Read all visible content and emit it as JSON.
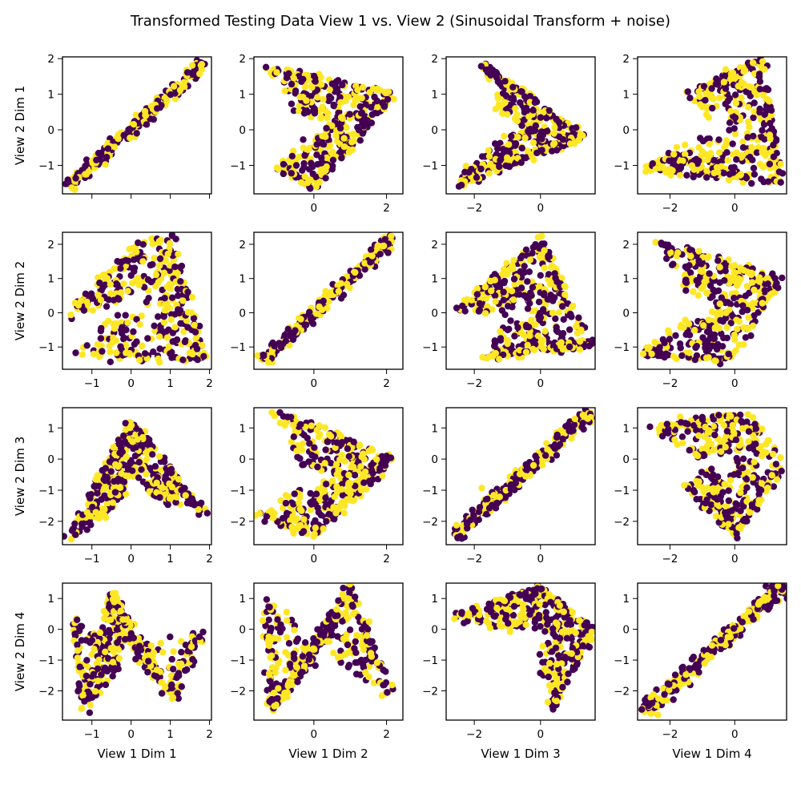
{
  "chart_data": {
    "type": "scatter",
    "layout": "4x4 grid of scatter panels",
    "title": "Transformed Testing Data View 1 vs. View 2 (Sinusoidal Transform + noise)",
    "colors": {
      "class_0": "#440154",
      "class_1": "#fde725"
    },
    "grid": false,
    "row_labels": [
      "View 2 Dim 1",
      "View 2 Dim 2",
      "View 2 Dim 3",
      "View 2 Dim 4"
    ],
    "col_labels": [
      "View 1 Dim 1",
      "View 1 Dim 2",
      "View 1 Dim 3",
      "View 1 Dim 4"
    ],
    "col_ranges": [
      [
        -1.75,
        2.05
      ],
      [
        -1.65,
        2.45
      ],
      [
        -2.85,
        1.65
      ],
      [
        -3.0,
        1.6
      ]
    ],
    "row_ranges": [
      [
        -1.8,
        2.05
      ],
      [
        -1.65,
        2.35
      ],
      [
        -2.75,
        1.65
      ],
      [
        -2.95,
        1.5
      ]
    ],
    "col_ticks": [
      [
        -1,
        0,
        1,
        2
      ],
      [
        0,
        2
      ],
      [
        -2,
        0
      ],
      [
        -2,
        0
      ]
    ],
    "row_ticks": [
      [
        -1,
        0,
        1,
        2
      ],
      [
        -1,
        0,
        1,
        2
      ],
      [
        -2,
        -1,
        0,
        1
      ],
      [
        -2,
        -1,
        0,
        1
      ]
    ],
    "tick_labels": {
      "col": [
        [
          "−1",
          "0",
          "1",
          "2"
        ],
        [
          "0",
          "2"
        ],
        [
          "−2",
          "0"
        ],
        [
          "−2",
          "0"
        ]
      ],
      "row": [
        [
          "−1",
          "0",
          "1",
          "2"
        ],
        [
          "−1",
          "0",
          "1",
          "2"
        ],
        [
          "−2",
          "−1",
          "0",
          "1"
        ],
        [
          "−2",
          "−1",
          "0",
          "1"
        ]
      ]
    },
    "x_tick_labels_shown": [
      [
        1,
        2,
        3
      ],
      [
        0,
        1,
        2,
        3
      ],
      [
        0,
        1,
        2,
        3
      ],
      [
        0,
        1,
        2,
        3
      ]
    ],
    "panels": [
      [
        {
          "pattern": "diagonal",
          "anchors": [
            [
              -1.6,
              -1.6
            ],
            [
              1.9,
              1.9
            ]
          ],
          "spread": 0.06
        },
        {
          "pattern": "triangle",
          "anchors": [
            [
              -1.3,
              1.8
            ],
            [
              2.2,
              1.0
            ],
            [
              0.0,
              -1.6
            ],
            [
              -1.0,
              -1.1
            ]
          ]
        },
        {
          "pattern": "chevron",
          "anchors": [
            [
              -1.8,
              1.9
            ],
            [
              1.3,
              -0.2
            ],
            [
              -2.6,
              -1.6
            ]
          ]
        },
        {
          "pattern": "sigma",
          "anchors": [
            [
              -1.5,
              1.0
            ],
            [
              0.8,
              2.0
            ],
            [
              1.4,
              -1.5
            ],
            [
              -2.9,
              -1.1
            ]
          ]
        }
      ],
      [
        {
          "pattern": "arch",
          "anchors": [
            [
              -1.6,
              0.0
            ],
            [
              0.3,
              2.1
            ],
            [
              1.0,
              2.2
            ],
            [
              1.9,
              -1.4
            ],
            [
              -1.5,
              -1.2
            ]
          ]
        },
        {
          "pattern": "diagonal",
          "anchors": [
            [
              -1.4,
              -1.4
            ],
            [
              2.2,
              2.2
            ]
          ],
          "spread": 0.06
        },
        {
          "pattern": "flag",
          "anchors": [
            [
              -2.6,
              0.0
            ],
            [
              0.0,
              2.2
            ],
            [
              1.5,
              -1.0
            ],
            [
              -1.8,
              -1.3
            ]
          ]
        },
        {
          "pattern": "sigma",
          "anchors": [
            [
              -2.5,
              2.1
            ],
            [
              1.4,
              1.0
            ],
            [
              -0.2,
              -1.4
            ],
            [
              -2.9,
              -1.2
            ]
          ]
        }
      ],
      [
        {
          "pattern": "parabola",
          "anchors": [
            [
              -1.6,
              -2.6
            ],
            [
              0.0,
              1.3
            ],
            [
              1.9,
              -1.8
            ]
          ]
        },
        {
          "pattern": "triangle",
          "anchors": [
            [
              -1.1,
              1.5
            ],
            [
              2.2,
              0.0
            ],
            [
              0.0,
              -2.5
            ],
            [
              -1.6,
              -1.8
            ]
          ]
        },
        {
          "pattern": "diagonal",
          "anchors": [
            [
              -2.6,
              -2.5
            ],
            [
              1.5,
              1.5
            ]
          ],
          "spread": 0.08
        },
        {
          "pattern": "blob",
          "anchors": [
            [
              -2.8,
              1.0
            ],
            [
              0.4,
              1.5
            ],
            [
              1.5,
              -0.2
            ],
            [
              0.0,
              -2.5
            ],
            [
              -1.6,
              -0.8
            ]
          ]
        }
      ],
      [
        {
          "pattern": "w-shape",
          "anchors": [
            [
              -1.5,
              0.4
            ],
            [
              -1.2,
              -2.7
            ],
            [
              -0.5,
              1.2
            ],
            [
              1.1,
              -2.3
            ],
            [
              1.9,
              0.0
            ]
          ]
        },
        {
          "pattern": "v-shape",
          "anchors": [
            [
              -1.3,
              1.0
            ],
            [
              -1.2,
              -2.7
            ],
            [
              1.0,
              1.4
            ],
            [
              2.2,
              -2.3
            ]
          ]
        },
        {
          "pattern": "bowl",
          "anchors": [
            [
              -2.6,
              0.4
            ],
            [
              0.0,
              1.4
            ],
            [
              1.6,
              0.0
            ],
            [
              0.3,
              -2.7
            ]
          ]
        },
        {
          "pattern": "diagonal",
          "anchors": [
            [
              -2.8,
              -2.7
            ],
            [
              1.5,
              1.4
            ]
          ],
          "spread": 0.1
        }
      ]
    ]
  }
}
